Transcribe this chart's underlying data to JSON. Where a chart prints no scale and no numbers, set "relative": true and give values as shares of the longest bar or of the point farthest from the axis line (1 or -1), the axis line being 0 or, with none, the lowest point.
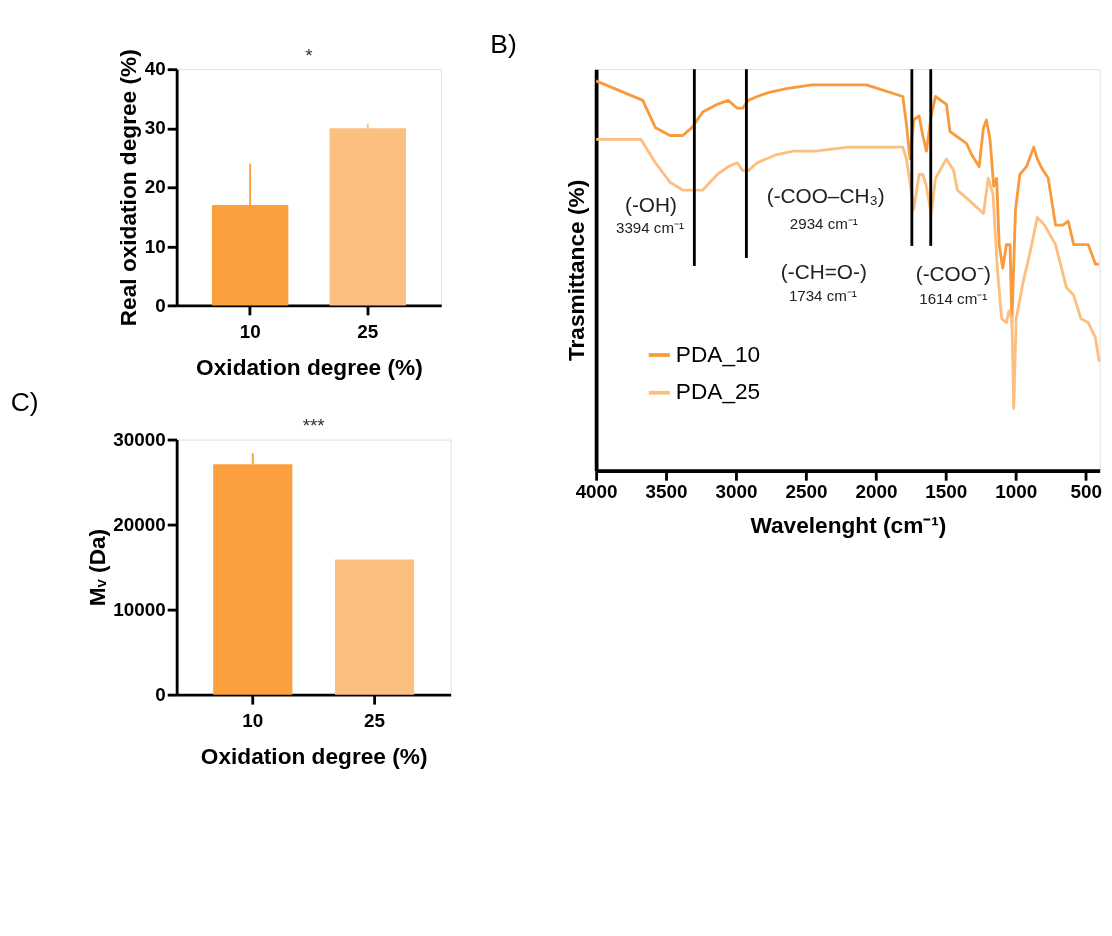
{
  "chart_data": [
    {
      "type": "bar",
      "xlabel": "Oxidation degree (%)",
      "ylabel": "Real oxidation degree (%)",
      "categories": [
        "10",
        "25"
      ],
      "values": [
        17,
        30
      ],
      "colors": [
        "#fb9f3f",
        "#fdbf80"
      ],
      "errors": [
        [
          17,
          24
        ],
        [
          30,
          30.8
        ]
      ],
      "ylim": [
        0,
        40
      ],
      "yticks": [
        0,
        10,
        20,
        30,
        40
      ],
      "grid": false,
      "annotations": [
        "*"
      ]
    },
    {
      "type": "line",
      "title": "B)",
      "xlabel": "Wavelenght (cm⁻¹)",
      "ylabel": "Trasmittance (%)",
      "relative": true,
      "xlim": [
        4000,
        400
      ],
      "xticks": [
        4000,
        3500,
        3000,
        2500,
        2000,
        1500,
        1000,
        500
      ],
      "grid": false,
      "legend": "bottom left",
      "marker": "none",
      "line_style": "solid",
      "series": [
        {
          "name": "PDA_10",
          "color": "#f79b3c",
          "x": [
            4000,
            3667,
            3576,
            3472,
            3381,
            3316,
            3238,
            3134,
            3056,
            2991,
            2952,
            2913,
            2848,
            2770,
            2640,
            2458,
            2302,
            2198,
            2068,
            1808,
            1782,
            1756,
            1730,
            1691,
            1665,
            1639,
            1605,
            1574,
            1496,
            1470,
            1431,
            1392,
            1353,
            1314,
            1262,
            1231,
            1210,
            1184,
            1158,
            1137,
            1119,
            1093,
            1067,
            1041,
            1028,
            1002,
            971,
            924,
            872,
            846,
            820,
            768,
            716,
            664,
            625,
            586,
            534,
            482,
            430,
            404
          ],
          "values": [
            1.0,
            0.95,
            0.88,
            0.86,
            0.86,
            0.88,
            0.92,
            0.94,
            0.95,
            0.93,
            0.93,
            0.95,
            0.96,
            0.97,
            0.98,
            0.99,
            0.99,
            0.99,
            0.99,
            0.96,
            0.89,
            0.8,
            0.9,
            0.91,
            0.86,
            0.82,
            0.91,
            0.96,
            0.94,
            0.87,
            0.86,
            0.85,
            0.84,
            0.81,
            0.78,
            0.88,
            0.9,
            0.85,
            0.73,
            0.75,
            0.58,
            0.52,
            0.58,
            0.58,
            0.38,
            0.67,
            0.76,
            0.78,
            0.83,
            0.8,
            0.78,
            0.75,
            0.63,
            0.63,
            0.64,
            0.58,
            0.58,
            0.58,
            0.53,
            0.53
          ]
        },
        {
          "name": "PDA_25",
          "color": "#fdbf80",
          "x": [
            4000,
            3680,
            3576,
            3472,
            3381,
            3316,
            3238,
            3134,
            3056,
            2991,
            2952,
            2913,
            2848,
            2718,
            2588,
            2432,
            2198,
            1808,
            1782,
            1756,
            1730,
            1691,
            1665,
            1639,
            1605,
            1574,
            1496,
            1444,
            1418,
            1353,
            1262,
            1231,
            1197,
            1163,
            1132,
            1101,
            1067,
            1049,
            1028,
            1015,
            997,
            950,
            898,
            846,
            794,
            716,
            638,
            586,
            534,
            482,
            430,
            404
          ],
          "values": [
            0.85,
            0.85,
            0.79,
            0.74,
            0.72,
            0.72,
            0.72,
            0.76,
            0.78,
            0.79,
            0.77,
            0.77,
            0.79,
            0.81,
            0.82,
            0.82,
            0.83,
            0.83,
            0.8,
            0.74,
            0.67,
            0.76,
            0.76,
            0.73,
            0.66,
            0.75,
            0.8,
            0.77,
            0.72,
            0.7,
            0.67,
            0.66,
            0.75,
            0.71,
            0.52,
            0.39,
            0.38,
            0.41,
            0.39,
            0.16,
            0.39,
            0.48,
            0.56,
            0.65,
            0.63,
            0.58,
            0.47,
            0.45,
            0.39,
            0.38,
            0.34,
            0.28
          ]
        }
      ],
      "ref_lines": [
        {
          "axis": "x",
          "value": 3298,
          "color": "#000000"
        },
        {
          "axis": "x",
          "value": 2926,
          "color": "#000000"
        },
        {
          "axis": "x",
          "value": 1743,
          "color": "#000000"
        },
        {
          "axis": "x",
          "value": 1608,
          "color": "#000000"
        }
      ],
      "annotations": [
        "(-OH)",
        "3394 cm⁻¹",
        "(-COO–CH₃)",
        "2934 cm⁻¹",
        "(-CH=O-)",
        "1734 cm⁻¹",
        "(-COO⁻)",
        "1614 cm⁻¹"
      ]
    },
    {
      "type": "bar",
      "title": "C)",
      "xlabel": "Oxidation degree (%)",
      "ylabel": "Mᵥ (Da)",
      "categories": [
        "10",
        "25"
      ],
      "values": [
        27100,
        15900
      ],
      "colors": [
        "#fb9f3f",
        "#fdbf80"
      ],
      "errors": [
        [
          27100,
          28400
        ],
        null
      ],
      "ylim": [
        0,
        30000
      ],
      "yticks": [
        0,
        10000,
        20000,
        30000
      ],
      "grid": false,
      "annotations": [
        "***"
      ]
    }
  ]
}
